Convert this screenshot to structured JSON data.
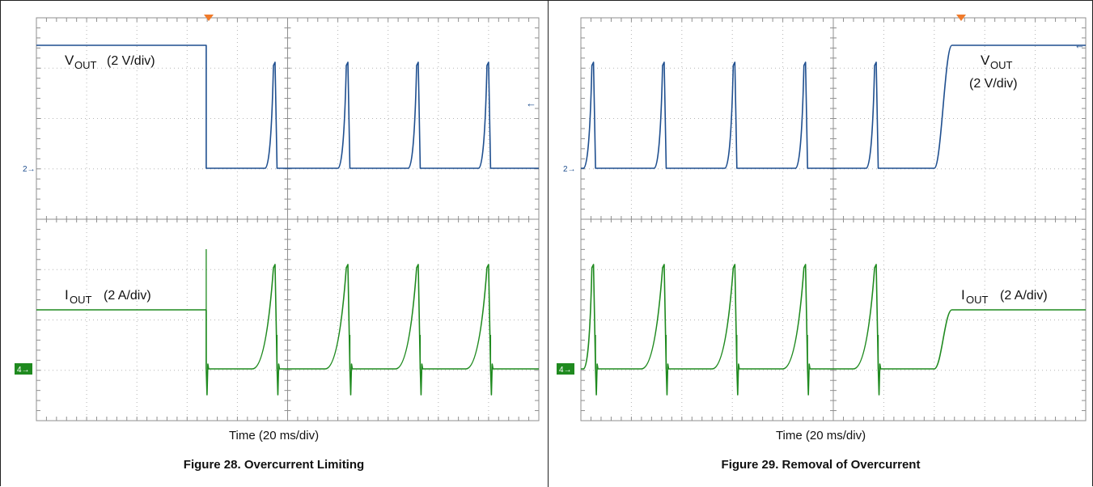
{
  "colors": {
    "voltage": "#1f4f8f",
    "current": "#1f8a1f",
    "trigger": "#f07a2a",
    "grid": "#8f8f8f"
  },
  "chart_data": [
    {
      "type": "line",
      "figure_caption": "Figure 28. Overcurrent Limiting",
      "xlabel": "Time (20 ms/div)",
      "x_divisions": 10,
      "voltage_channel": {
        "name": "V OUT",
        "label_main": "V",
        "label_sub": "OUT",
        "label_scale": "(2 V/div)",
        "marker": "2",
        "segments": [
          {
            "x0": 0.0,
            "x1": 3.38,
            "mode": "hold",
            "level": "high"
          },
          {
            "x0": 3.38,
            "x1": 4.55,
            "mode": "low"
          },
          {
            "x0": 4.55,
            "x1": 4.75,
            "mode": "rise"
          },
          {
            "x0": 4.75,
            "x1": 4.79,
            "mode": "fall"
          },
          {
            "x0": 4.79,
            "x1": 6.0,
            "mode": "low"
          },
          {
            "x0": 6.0,
            "x1": 6.2,
            "mode": "rise"
          },
          {
            "x0": 6.2,
            "x1": 6.24,
            "mode": "fall"
          },
          {
            "x0": 6.24,
            "x1": 7.4,
            "mode": "low"
          },
          {
            "x0": 7.4,
            "x1": 7.6,
            "mode": "rise"
          },
          {
            "x0": 7.6,
            "x1": 7.64,
            "mode": "fall"
          },
          {
            "x0": 7.64,
            "x1": 8.8,
            "mode": "low"
          },
          {
            "x0": 8.8,
            "x1": 9.0,
            "mode": "rise"
          },
          {
            "x0": 9.0,
            "x1": 9.04,
            "mode": "fall"
          },
          {
            "x0": 9.04,
            "x1": 10.0,
            "mode": "low"
          }
        ]
      },
      "current_channel": {
        "name": "I OUT",
        "label_main": "I",
        "label_sub": "OUT",
        "label_scale": "(2 A/div)",
        "marker": "4",
        "segments": [
          {
            "x0": 0.0,
            "x1": 3.38,
            "mode": "hold",
            "level": "high"
          },
          {
            "x0": 3.38,
            "x1": 4.3,
            "mode": "low",
            "spike_start": true
          },
          {
            "x0": 4.3,
            "x1": 4.75,
            "mode": "rise"
          },
          {
            "x0": 4.75,
            "x1": 4.79,
            "mode": "fall"
          },
          {
            "x0": 4.79,
            "x1": 5.75,
            "mode": "low",
            "spike_start": true
          },
          {
            "x0": 5.75,
            "x1": 6.2,
            "mode": "rise"
          },
          {
            "x0": 6.2,
            "x1": 6.24,
            "mode": "fall"
          },
          {
            "x0": 6.24,
            "x1": 7.15,
            "mode": "low",
            "spike_start": true
          },
          {
            "x0": 7.15,
            "x1": 7.6,
            "mode": "rise"
          },
          {
            "x0": 7.6,
            "x1": 7.64,
            "mode": "fall"
          },
          {
            "x0": 7.64,
            "x1": 8.55,
            "mode": "low",
            "spike_start": true
          },
          {
            "x0": 8.55,
            "x1": 9.0,
            "mode": "rise"
          },
          {
            "x0": 9.0,
            "x1": 9.04,
            "mode": "fall"
          },
          {
            "x0": 9.04,
            "x1": 10.0,
            "mode": "low",
            "spike_start": true
          }
        ]
      }
    },
    {
      "type": "line",
      "figure_caption": "Figure 29. Removal of Overcurrent",
      "xlabel": "Time (20 ms/div)",
      "x_divisions": 10,
      "voltage_channel": {
        "name": "V OUT",
        "label_main": "V",
        "label_sub": "OUT",
        "label_scale": "(2 V/div)",
        "marker": "2",
        "segments": [
          {
            "x0": 0.0,
            "x1": 0.05,
            "mode": "low"
          },
          {
            "x0": 0.05,
            "x1": 0.25,
            "mode": "rise"
          },
          {
            "x0": 0.25,
            "x1": 0.29,
            "mode": "fall"
          },
          {
            "x0": 0.29,
            "x1": 1.45,
            "mode": "low"
          },
          {
            "x0": 1.45,
            "x1": 1.65,
            "mode": "rise"
          },
          {
            "x0": 1.65,
            "x1": 1.69,
            "mode": "fall"
          },
          {
            "x0": 1.69,
            "x1": 2.85,
            "mode": "low"
          },
          {
            "x0": 2.85,
            "x1": 3.05,
            "mode": "rise"
          },
          {
            "x0": 3.05,
            "x1": 3.09,
            "mode": "fall"
          },
          {
            "x0": 3.09,
            "x1": 4.25,
            "mode": "low"
          },
          {
            "x0": 4.25,
            "x1": 4.45,
            "mode": "rise"
          },
          {
            "x0": 4.45,
            "x1": 4.49,
            "mode": "fall"
          },
          {
            "x0": 4.49,
            "x1": 5.65,
            "mode": "low"
          },
          {
            "x0": 5.65,
            "x1": 5.85,
            "mode": "rise"
          },
          {
            "x0": 5.85,
            "x1": 5.89,
            "mode": "fall"
          },
          {
            "x0": 5.89,
            "x1": 7.0,
            "mode": "low"
          },
          {
            "x0": 7.0,
            "x1": 7.35,
            "mode": "ramp_up"
          },
          {
            "x0": 7.35,
            "x1": 10.0,
            "mode": "hold",
            "level": "high"
          }
        ]
      },
      "current_channel": {
        "name": "I OUT",
        "label_main": "I",
        "label_sub": "OUT",
        "label_scale": "(2 A/div)",
        "marker": "4",
        "segments": [
          {
            "x0": 0.0,
            "x1": 0.05,
            "mode": "low"
          },
          {
            "x0": 0.05,
            "x1": 0.25,
            "mode": "rise"
          },
          {
            "x0": 0.25,
            "x1": 0.29,
            "mode": "fall"
          },
          {
            "x0": 0.29,
            "x1": 1.2,
            "mode": "low",
            "spike_start": true
          },
          {
            "x0": 1.2,
            "x1": 1.65,
            "mode": "rise"
          },
          {
            "x0": 1.65,
            "x1": 1.69,
            "mode": "fall"
          },
          {
            "x0": 1.69,
            "x1": 2.6,
            "mode": "low",
            "spike_start": true
          },
          {
            "x0": 2.6,
            "x1": 3.05,
            "mode": "rise"
          },
          {
            "x0": 3.05,
            "x1": 3.09,
            "mode": "fall"
          },
          {
            "x0": 3.09,
            "x1": 4.0,
            "mode": "low",
            "spike_start": true
          },
          {
            "x0": 4.0,
            "x1": 4.45,
            "mode": "rise"
          },
          {
            "x0": 4.45,
            "x1": 4.49,
            "mode": "fall"
          },
          {
            "x0": 4.49,
            "x1": 5.4,
            "mode": "low",
            "spike_start": true
          },
          {
            "x0": 5.4,
            "x1": 5.85,
            "mode": "rise"
          },
          {
            "x0": 5.85,
            "x1": 5.89,
            "mode": "fall"
          },
          {
            "x0": 5.89,
            "x1": 7.0,
            "mode": "low",
            "spike_start": true
          },
          {
            "x0": 7.0,
            "x1": 7.35,
            "mode": "ramp_up"
          },
          {
            "x0": 7.35,
            "x1": 10.0,
            "mode": "hold",
            "level": "high"
          }
        ]
      }
    }
  ]
}
